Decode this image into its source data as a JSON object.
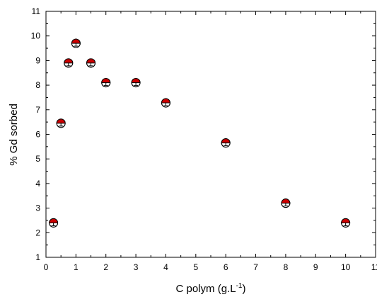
{
  "chart_data": {
    "type": "scatter",
    "xlabel_main": "C polym (g.L",
    "xlabel_sup": "-1",
    "xlabel_close": ")",
    "ylabel": "% Gd sorbed",
    "xlim": [
      0,
      11
    ],
    "ylim": [
      1,
      11
    ],
    "x_ticks": [
      0,
      1,
      2,
      3,
      4,
      5,
      6,
      7,
      8,
      9,
      10,
      11
    ],
    "y_ticks": [
      1,
      2,
      3,
      4,
      5,
      6,
      7,
      8,
      9,
      10,
      11
    ],
    "grid": false,
    "series": [
      {
        "x": [
          0.25,
          0.5,
          0.75,
          1,
          1.5,
          2,
          3,
          4,
          6,
          8,
          10
        ],
        "y": [
          2.4,
          6.45,
          8.9,
          9.7,
          8.9,
          8.1,
          8.1,
          7.28,
          5.65,
          3.2,
          2.4
        ],
        "marker_color": "#cc0000"
      }
    ]
  }
}
